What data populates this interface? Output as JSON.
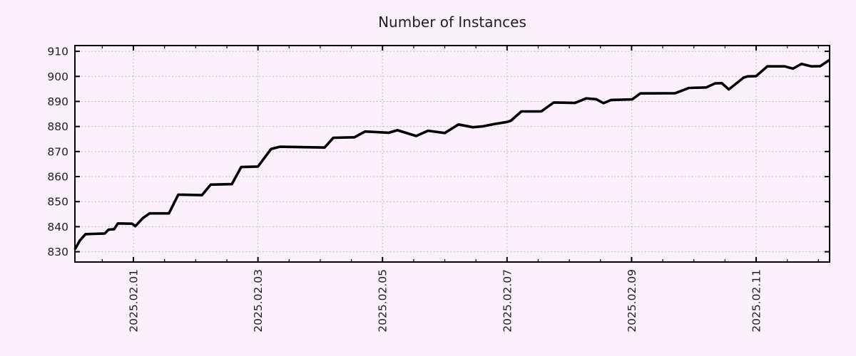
{
  "chart_data": {
    "type": "line",
    "title": "Number of Instances",
    "legend": "none",
    "grid": "dotted",
    "x_axis": {
      "unit": "days_since_2025-02-01",
      "range": [
        -0.94,
        11.18
      ],
      "minor_tick_step_days": 0.5,
      "major_ticks": [
        {
          "day": 0,
          "label": "2025.02.01"
        },
        {
          "day": 2,
          "label": "2025.02.03"
        },
        {
          "day": 4,
          "label": "2025.02.05"
        },
        {
          "day": 6,
          "label": "2025.02.07"
        },
        {
          "day": 8,
          "label": "2025.02.09"
        },
        {
          "day": 10,
          "label": "2025.02.11"
        }
      ]
    },
    "y_axis": {
      "range": [
        825.9,
        912.3
      ],
      "ticks": [
        830,
        840,
        850,
        860,
        870,
        880,
        890,
        900,
        910
      ]
    },
    "series": [
      {
        "name": "instances",
        "color": "#000000",
        "points": [
          [
            -0.94,
            831.0
          ],
          [
            -0.86,
            834.5
          ],
          [
            -0.77,
            837.0
          ],
          [
            -0.46,
            837.3
          ],
          [
            -0.4,
            838.8
          ],
          [
            -0.31,
            839.0
          ],
          [
            -0.25,
            841.3
          ],
          [
            -0.02,
            841.2
          ],
          [
            0.03,
            840.2
          ],
          [
            0.15,
            843.4
          ],
          [
            0.26,
            845.3
          ],
          [
            0.57,
            845.3
          ],
          [
            0.72,
            852.8
          ],
          [
            1.1,
            852.6
          ],
          [
            1.24,
            856.8
          ],
          [
            1.58,
            857.0
          ],
          [
            1.73,
            863.8
          ],
          [
            2.0,
            864.0
          ],
          [
            2.21,
            871.0
          ],
          [
            2.35,
            871.9
          ],
          [
            3.07,
            871.6
          ],
          [
            3.21,
            875.5
          ],
          [
            3.55,
            875.7
          ],
          [
            3.72,
            878.0
          ],
          [
            4.1,
            877.5
          ],
          [
            4.24,
            878.5
          ],
          [
            4.54,
            876.2
          ],
          [
            4.73,
            878.3
          ],
          [
            5.0,
            877.4
          ],
          [
            5.22,
            880.8
          ],
          [
            5.45,
            879.7
          ],
          [
            5.6,
            880.0
          ],
          [
            5.8,
            881.0
          ],
          [
            6.0,
            881.8
          ],
          [
            6.06,
            882.3
          ],
          [
            6.23,
            886.0
          ],
          [
            6.55,
            886.0
          ],
          [
            6.75,
            889.6
          ],
          [
            7.09,
            889.4
          ],
          [
            7.27,
            891.2
          ],
          [
            7.43,
            890.9
          ],
          [
            7.55,
            889.3
          ],
          [
            7.67,
            890.6
          ],
          [
            8.01,
            890.8
          ],
          [
            8.14,
            893.2
          ],
          [
            8.7,
            893.3
          ],
          [
            8.92,
            895.4
          ],
          [
            9.2,
            895.6
          ],
          [
            9.34,
            897.2
          ],
          [
            9.45,
            897.3
          ],
          [
            9.56,
            894.8
          ],
          [
            9.8,
            899.5
          ],
          [
            9.86,
            900.0
          ],
          [
            10.0,
            900.1
          ],
          [
            10.18,
            904.0
          ],
          [
            10.46,
            904.0
          ],
          [
            10.59,
            903.1
          ],
          [
            10.73,
            905.0
          ],
          [
            10.89,
            904.0
          ],
          [
            11.03,
            904.1
          ],
          [
            11.18,
            906.6
          ]
        ]
      }
    ]
  },
  "style": {
    "background": "#fbf0fb",
    "line_color": "#000000",
    "grid_color": "#b3abb3",
    "axis_color": "#000000",
    "text_color": "#221c28"
  }
}
